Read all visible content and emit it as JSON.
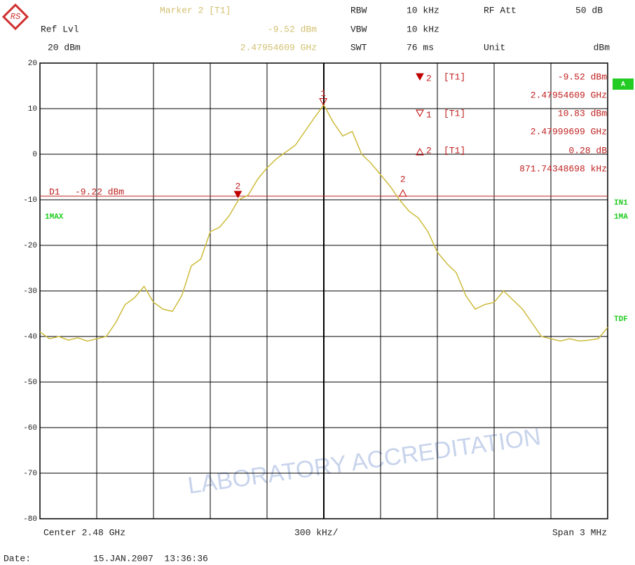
{
  "chart_data": {
    "type": "line",
    "header": {
      "marker_title": "Marker 2 [T1]",
      "marker_level": "-9.52 dBm",
      "marker_freq": "2.47954609 GHz",
      "ref_lvl_label": "Ref Lvl",
      "ref_lvl": "20 dBm",
      "rbw_label": "RBW",
      "rbw": "10 kHz",
      "rf_att_label": "RF Att",
      "rf_att": "50 dB",
      "vbw_label": "VBW",
      "vbw": "10 kHz",
      "swt_label": "SWT",
      "swt": "76 ms",
      "unit_label": "Unit",
      "unit": "dBm"
    },
    "side_labels": {
      "a": "A",
      "in1": "IN1",
      "ma": "1MA",
      "tdf": "TDF"
    },
    "markers": [
      {
        "number": "2",
        "tag": "[T1]",
        "value": -9.52,
        "value_label": "-9.52 dBm",
        "freq": 2.47954609,
        "freq_label": "2.47954609 GHz"
      },
      {
        "number": "1",
        "tag": "[T1]",
        "value": 10.83,
        "value_label": "10.83 dBm",
        "freq": 2.47999699,
        "freq_label": "2.47999699 GHz"
      }
    ],
    "delta_marker": {
      "number": "2",
      "tag": "[T1]",
      "value": 0.28,
      "value_label": "0.28 dB",
      "offset_khz": 871.74348698,
      "offset_label": "871.74348698 kHz"
    },
    "display_line": {
      "label": "D1",
      "value": -9.22,
      "value_label": "-9.22 dBm"
    },
    "x_axis": {
      "center": "Center 2.48 GHz",
      "div": "300 kHz/",
      "span": "Span 3 MHz"
    },
    "date_label": "Date:",
    "date": "15.JAN.2007  13:36:36",
    "watermark": "LABORATORY ACCREDITATION",
    "xlim": [
      2.4785,
      2.4815
    ],
    "ylim": [
      -80,
      20
    ],
    "yticks": [
      20,
      10,
      0,
      -10,
      -20,
      -30,
      -40,
      -50,
      -60,
      -70,
      -80
    ],
    "x": [
      2.4785,
      2.47855,
      2.4786,
      2.47865,
      2.4787,
      2.47875,
      2.4788,
      2.47885,
      2.4789,
      2.47895,
      2.479,
      2.47905,
      2.4791,
      2.47915,
      2.4792,
      2.47925,
      2.4793,
      2.47935,
      2.4794,
      2.47945,
      2.4795,
      2.47955,
      2.4796,
      2.47965,
      2.4797,
      2.47975,
      2.4798,
      2.47985,
      2.4799,
      2.47995,
      2.48,
      2.48005,
      2.4801,
      2.48015,
      2.4802,
      2.48025,
      2.4803,
      2.48035,
      2.4804,
      2.48045,
      2.4805,
      2.48055,
      2.4806,
      2.48065,
      2.4807,
      2.48075,
      2.4808,
      2.48085,
      2.4809,
      2.48095,
      2.481,
      2.48105,
      2.4811,
      2.48115,
      2.4812,
      2.48125,
      2.4813,
      2.48135,
      2.4814,
      2.48145,
      2.4815
    ],
    "series": [
      {
        "name": "1MAX",
        "color": "#cdbb3a",
        "values": [
          -39,
          -40.5,
          -40,
          -40.8,
          -40.3,
          -41,
          -40.5,
          -40,
          -37,
          -33,
          -31.5,
          -29,
          -32.5,
          -34,
          -34.5,
          -31,
          -24.5,
          -23,
          -17,
          -16,
          -13.5,
          -10,
          -9,
          -5.5,
          -3,
          -1,
          0.5,
          2,
          5,
          8,
          10.83,
          7,
          4,
          5,
          0,
          -2,
          -4.5,
          -7,
          -10,
          -12.5,
          -14,
          -17,
          -21.5,
          -24,
          -26,
          -31,
          -34,
          -33,
          -32.5,
          -30,
          -32,
          -34,
          -37,
          -40,
          -40.5,
          -41,
          -40.5,
          -41,
          -40.8,
          -40.5,
          -38
        ]
      }
    ]
  }
}
